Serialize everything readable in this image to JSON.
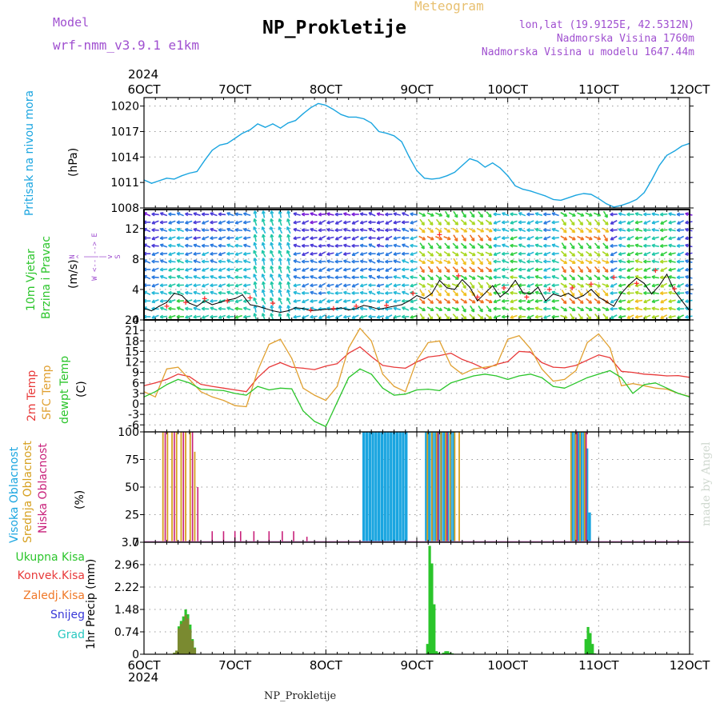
{
  "header": {
    "model_label": "Model",
    "model_name": "wrf-nmm_v3.9.1 e1km",
    "title": "NP_Prokletije",
    "meteogram": "Meteogram",
    "lonlat": "lon,lat (19.9125E, 42.5312N)",
    "elev": "Nadmorska Visina 1760m",
    "elev_model": "Nadmorska Visina u modelu 1647.44m",
    "year_top": "2024",
    "year_bottom": "2024",
    "footer": "NP_Prokletije",
    "credit": "made by Angel"
  },
  "colors": {
    "pressure": "#1aa5e0",
    "temp2m": "#e83a3a",
    "sfc": "#e0a030",
    "dew": "#2bc52b",
    "high": "#1aa5e0",
    "mid": "#d6a020",
    "low": "#c8207a",
    "precip_total": "#2bc52b",
    "precip_conv": "#e83a3a",
    "precip_strat": "#f07828",
    "snow": "#3838d8",
    "hail": "#28c8c0",
    "wind_line": "#000000",
    "gust": "#ff3030",
    "grid": "#9a9a9a",
    "legend_purple": "#a050d0",
    "meteogram": "#e8c070"
  },
  "chart_data": [
    {
      "type": "line",
      "name": "pressure",
      "ylabel_left": "Pritisak na nivou mora",
      "unit": "(hPa)",
      "xlim": [
        0,
        144
      ],
      "ylim": [
        1008,
        1021
      ],
      "yticks": [
        "1008",
        "1011",
        "1014",
        "1017",
        "1020"
      ],
      "x_tick_labels": [
        "6OCT",
        "7OCT",
        "8OCT",
        "9OCT",
        "10OCT",
        "11OCT",
        "12OCT"
      ],
      "series": [
        {
          "x": [
            0,
            2,
            4,
            6,
            8,
            10,
            12,
            14,
            16,
            18,
            20,
            22,
            24,
            26,
            28,
            30,
            32,
            34,
            36,
            38,
            40,
            42,
            44,
            46,
            48,
            50,
            52,
            54,
            56,
            58,
            60,
            62,
            64,
            66,
            68,
            70,
            72,
            74,
            76,
            78,
            80,
            82,
            84,
            86,
            88,
            90,
            92,
            94,
            96,
            98,
            100,
            102,
            104,
            106,
            108,
            110,
            112,
            114,
            116,
            118,
            120,
            122,
            124,
            126,
            128,
            130,
            132,
            134,
            136,
            138,
            140,
            142,
            144
          ],
          "values": [
            1011.3,
            1010.9,
            1011.2,
            1011.5,
            1011.4,
            1011.8,
            1012.1,
            1012.3,
            1013.6,
            1014.8,
            1015.4,
            1015.6,
            1016.2,
            1016.8,
            1017.2,
            1017.9,
            1017.5,
            1017.9,
            1017.4,
            1018.0,
            1018.3,
            1019.1,
            1019.8,
            1020.3,
            1020.1,
            1019.6,
            1019.0,
            1018.7,
            1018.7,
            1018.5,
            1018.0,
            1017.0,
            1016.8,
            1016.5,
            1015.8,
            1014.0,
            1012.4,
            1011.5,
            1011.4,
            1011.5,
            1011.8,
            1012.2,
            1013.0,
            1013.8,
            1013.5,
            1012.8,
            1013.3,
            1012.7,
            1011.8,
            1010.6,
            1010.2,
            1010.0,
            1009.7,
            1009.4,
            1009.0,
            1008.9,
            1009.2,
            1009.5,
            1009.7,
            1009.6,
            1009.1,
            1008.5,
            1008.1,
            1008.3,
            1008.6,
            1009.0,
            1009.8,
            1011.3,
            1013.0,
            1014.2,
            1014.7,
            1015.3,
            1015.6
          ]
        }
      ]
    },
    {
      "type": "line",
      "name": "wind",
      "ylabel_left_1": "10m Vjetar",
      "ylabel_left_2": "Brzina i Pravac",
      "unit": "(m/s)",
      "compass": "N\n^\n|\nW <--|--> E\n|\nv\nS",
      "ylim": [
        0,
        14.5
      ],
      "yticks": [
        "0",
        "4",
        "8",
        "12"
      ],
      "series": [
        {
          "name": "",
          "x": [
            0,
            2,
            4,
            6,
            8,
            10,
            12,
            14,
            16,
            18,
            20,
            22,
            24,
            26,
            28,
            30,
            32,
            34,
            36,
            38,
            40,
            42,
            44,
            46,
            48,
            50,
            52,
            54,
            56,
            58,
            60,
            62,
            64,
            66,
            68,
            70,
            72,
            74,
            76,
            78,
            80,
            82,
            84,
            86,
            88,
            90,
            92,
            94,
            96,
            98,
            100,
            102,
            104,
            106,
            108,
            110,
            112,
            114,
            116,
            118,
            120,
            122,
            124,
            126,
            128,
            130,
            132,
            134,
            136,
            138,
            140,
            142,
            144
          ],
          "values": [
            1.5,
            1.2,
            1.8,
            2.3,
            3.5,
            3.2,
            2.2,
            1.8,
            2.5,
            2.0,
            2.3,
            2.6,
            2.8,
            3.3,
            2.0,
            1.8,
            1.5,
            1.2,
            1.0,
            1.2,
            1.6,
            1.5,
            1.2,
            1.3,
            1.4,
            1.4,
            1.6,
            1.3,
            1.5,
            1.9,
            1.7,
            1.4,
            1.6,
            1.8,
            2.0,
            2.5,
            3.2,
            2.8,
            3.5,
            5.2,
            4.2,
            4.0,
            5.3,
            4.3,
            2.5,
            3.5,
            4.5,
            3.0,
            3.8,
            5.2,
            3.6,
            3.4,
            4.3,
            2.5,
            3.4,
            3.1,
            3.5,
            2.8,
            3.2,
            4.0,
            3.0,
            2.4,
            1.8,
            3.5,
            4.6,
            5.5,
            4.8,
            3.4,
            4.5,
            6.0,
            3.8,
            2.5,
            1.2
          ]
        }
      ],
      "gust_x": [
        6,
        11,
        16,
        22,
        28,
        34,
        44,
        50,
        56,
        64,
        71,
        78,
        83,
        88,
        95,
        101,
        107,
        113,
        118,
        124,
        130,
        135,
        140
      ],
      "gust_values": [
        1.8,
        2.3,
        2.8,
        2.5,
        2.9,
        2.2,
        1.3,
        1.5,
        1.8,
        1.9,
        3.5,
        11.2,
        5.8,
        3.0,
        4.2,
        3.0,
        4.0,
        4.2,
        4.7,
        5.6,
        4.8,
        6.5,
        4.1
      ]
    },
    {
      "type": "line",
      "name": "temperature",
      "ylabel_left_1": "2m Temp",
      "ylabel_left_2": "SFC Temp",
      "ylabel_left_3": "dewpt Temp",
      "unit": "(C)",
      "ylim": [
        -8,
        24
      ],
      "yticks": [
        "-6",
        "-3",
        "0",
        "3",
        "6",
        "9",
        "12",
        "15",
        "18",
        "21",
        "24"
      ],
      "series": [
        {
          "name": "2m Temp",
          "x": [
            0,
            3,
            6,
            9,
            12,
            15,
            18,
            21,
            24,
            27,
            30,
            33,
            36,
            39,
            42,
            45,
            48,
            51,
            54,
            57,
            60,
            63,
            66,
            69,
            72,
            75,
            78,
            81,
            84,
            87,
            90,
            93,
            96,
            99,
            102,
            105,
            108,
            111,
            114,
            117,
            120,
            123,
            126,
            129,
            132,
            135,
            138,
            141,
            144
          ],
          "values": [
            5.2,
            6.0,
            7.0,
            8.5,
            7.8,
            5.6,
            5.0,
            4.5,
            4.0,
            3.5,
            7.5,
            10.5,
            11.8,
            10.5,
            10.2,
            9.8,
            10.8,
            11.5,
            14.5,
            16.3,
            13.5,
            11.0,
            10.5,
            10.2,
            12.0,
            13.4,
            13.8,
            14.5,
            12.7,
            11.5,
            10.0,
            11.3,
            12.1,
            15.0,
            14.8,
            11.8,
            10.5,
            10.3,
            11.0,
            12.5,
            14.0,
            13.2,
            9.3,
            9.0,
            8.5,
            8.3,
            8.0,
            8.1,
            7.6
          ]
        },
        {
          "name": "SFC Temp",
          "x": [
            0,
            3,
            6,
            9,
            12,
            15,
            18,
            21,
            24,
            27,
            30,
            33,
            36,
            39,
            42,
            45,
            48,
            51,
            54,
            57,
            60,
            63,
            66,
            69,
            72,
            75,
            78,
            81,
            84,
            87,
            90,
            93,
            96,
            99,
            102,
            105,
            108,
            111,
            114,
            117,
            120,
            123,
            126,
            129,
            132,
            135,
            138,
            141,
            144
          ],
          "values": [
            3.5,
            2.0,
            10.0,
            10.5,
            7.0,
            3.5,
            2.0,
            1.0,
            -0.5,
            -0.8,
            9.5,
            17.0,
            18.5,
            13.0,
            4.5,
            2.5,
            1.0,
            5.0,
            16.0,
            21.6,
            18.0,
            8.5,
            5.0,
            3.5,
            12.5,
            17.5,
            18.0,
            11.0,
            8.5,
            10.0,
            10.5,
            11.0,
            18.5,
            19.5,
            15.8,
            10.0,
            6.5,
            7.0,
            9.5,
            17.5,
            20.0,
            16.0,
            5.2,
            5.8,
            5.2,
            4.5,
            4.2,
            3.0,
            2.1
          ]
        },
        {
          "name": "dewpt Temp",
          "x": [
            0,
            3,
            6,
            9,
            12,
            15,
            18,
            21,
            24,
            27,
            30,
            33,
            36,
            39,
            42,
            45,
            48,
            51,
            54,
            57,
            60,
            63,
            66,
            69,
            72,
            75,
            78,
            81,
            84,
            87,
            90,
            93,
            96,
            99,
            102,
            105,
            108,
            111,
            114,
            117,
            120,
            123,
            126,
            129,
            132,
            135,
            138,
            141,
            144
          ],
          "values": [
            2.0,
            3.5,
            5.5,
            7.0,
            6.0,
            4.2,
            4.0,
            3.8,
            3.0,
            2.5,
            5.0,
            4.0,
            4.5,
            4.3,
            -2.0,
            -5.0,
            -6.5,
            0.5,
            7.5,
            10.0,
            8.5,
            4.5,
            2.5,
            2.8,
            4.0,
            4.2,
            3.8,
            6.0,
            7.0,
            8.0,
            8.5,
            8.0,
            7.0,
            8.0,
            8.5,
            7.5,
            5.0,
            4.5,
            6.0,
            7.5,
            8.5,
            9.5,
            7.5,
            3.0,
            5.5,
            6.0,
            4.5,
            3.0,
            2.0
          ]
        }
      ]
    },
    {
      "type": "bar",
      "name": "cloud",
      "ylabel_left_1": "Visoka Oblacnost",
      "ylabel_left_2": "Srednja Oblacnost",
      "ylabel_left_3": "Niska Oblacnost",
      "unit": "(%)",
      "ylim": [
        0,
        100
      ],
      "yticks": [
        "0",
        "25",
        "50",
        "75",
        "100"
      ],
      "series": [
        {
          "name": "Visoka Oblacnost",
          "x": [
            58,
            58.8,
            59.6,
            60.4,
            61.2,
            62,
            62.8,
            63.6,
            64.4,
            65.2,
            66,
            66.8,
            67.6,
            68.4,
            69.2,
            74.5,
            75.3,
            76.1,
            76.9,
            77.7,
            78.5,
            79.3,
            80.1,
            80.9,
            81.7,
            113,
            113.8,
            114.6,
            115.4,
            116.2,
            116.9,
            117.6
          ],
          "values": [
            100,
            100,
            100,
            100,
            100,
            100,
            100,
            100,
            100,
            100,
            100,
            100,
            100,
            100,
            100,
            100,
            100,
            100,
            100,
            100,
            100,
            100,
            100,
            100,
            100,
            100,
            100,
            100,
            100,
            100,
            85,
            27
          ]
        },
        {
          "name": "Srednja Oblacnost",
          "x": [
            5,
            6.2,
            7.4,
            8.6,
            9.8,
            11,
            12.2,
            13.4,
            74.8,
            76,
            77.2,
            78.4,
            79.6,
            80.8,
            82,
            83.2,
            112.7,
            113.9,
            115.1,
            116.3
          ],
          "values": [
            100,
            100,
            100,
            100,
            100,
            100,
            100,
            82,
            100,
            100,
            100,
            100,
            100,
            100,
            100,
            100,
            100,
            100,
            100,
            100
          ]
        },
        {
          "name": "Niska Oblacnost",
          "x": [
            5.6,
            8,
            10.4,
            12.8,
            14.2,
            18,
            21,
            24,
            25.5,
            29,
            33,
            36.5,
            39.5,
            43,
            77.6,
            80,
            114.3,
            116.7
          ],
          "values": [
            100,
            100,
            100,
            100,
            50,
            10,
            10,
            10,
            10,
            10,
            10,
            10,
            10,
            5,
            100,
            100,
            100,
            100
          ]
        }
      ]
    },
    {
      "type": "bar",
      "name": "precipitation",
      "legend": [
        "Ukupna Kisa",
        "Konvek.Kisa",
        "Zaledj.Kisa",
        "Snijeg",
        "Grad"
      ],
      "unit": "1hr Precip (mm)",
      "ylim": [
        0,
        3.7
      ],
      "yticks": [
        "0",
        "0.74",
        "1.48",
        "2.22",
        "2.96",
        "3.7"
      ],
      "series": [
        {
          "name": "Ukupna Kisa",
          "x": [
            8,
            8.6,
            9.2,
            9.8,
            10.4,
            11,
            11.6,
            12.2,
            12.8,
            13.4,
            74.8,
            75.4,
            76,
            76.6,
            77.2,
            77.8,
            79,
            79.6,
            80.2,
            80.8,
            81.4,
            116.6,
            117.2,
            117.8,
            118.4,
            119
          ],
          "values": [
            0.05,
            0.12,
            0.92,
            1.1,
            1.25,
            1.48,
            1.32,
            0.98,
            0.5,
            0.22,
            0.34,
            3.58,
            3.0,
            1.65,
            0.1,
            0.05,
            0.05,
            0.1,
            0.1,
            0.05,
            0.03,
            0.5,
            0.9,
            0.7,
            0.34,
            0.03
          ]
        },
        {
          "name": "Zaledj.Kisa",
          "x": [
            8,
            8.6,
            9.2,
            9.8,
            10.4,
            11,
            11.6,
            12.2,
            12.8,
            13.4
          ],
          "values": [
            0.05,
            0.12,
            0.85,
            1.0,
            1.1,
            1.3,
            1.18,
            0.82,
            0.45,
            0.2
          ]
        }
      ]
    }
  ]
}
